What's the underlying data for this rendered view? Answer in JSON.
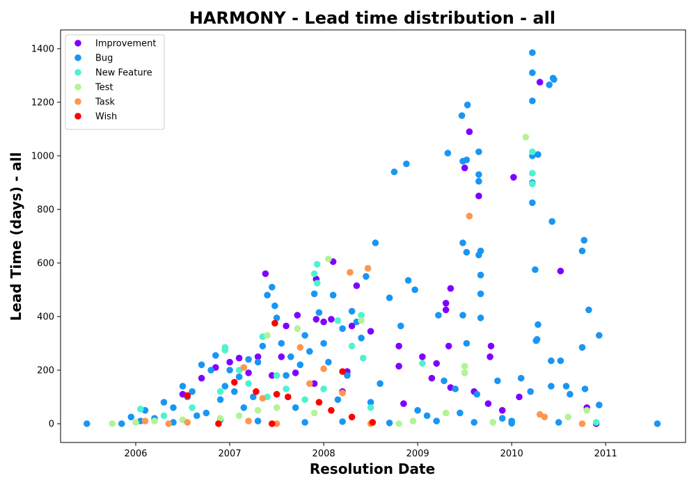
{
  "chart_data": {
    "type": "scatter",
    "title": "HARMONY - Lead time distribution - all",
    "xlabel": "Resolution Date",
    "ylabel": "Lead Time (days) - all",
    "xlim": [
      2005.2,
      2011.85
    ],
    "ylim": [
      -70,
      1470
    ],
    "xticks": [
      2006,
      2007,
      2008,
      2009,
      2010,
      2011
    ],
    "yticks": [
      0,
      200,
      400,
      600,
      800,
      1000,
      1200,
      1400
    ],
    "grid": false,
    "legend_position": "top-left",
    "series": [
      {
        "name": "Improvement",
        "color": "#8000ff",
        "points": [
          [
            2006.5,
            110
          ],
          [
            2006.7,
            170
          ],
          [
            2006.85,
            210
          ],
          [
            2007.0,
            230
          ],
          [
            2007.1,
            245
          ],
          [
            2007.2,
            190
          ],
          [
            2007.3,
            250
          ],
          [
            2007.38,
            560
          ],
          [
            2007.45,
            180
          ],
          [
            2007.55,
            250
          ],
          [
            2007.6,
            365
          ],
          [
            2007.7,
            190
          ],
          [
            2007.72,
            405
          ],
          [
            2007.9,
            150
          ],
          [
            2007.92,
            540
          ],
          [
            2007.92,
            390
          ],
          [
            2008.0,
            380
          ],
          [
            2008.08,
            390
          ],
          [
            2008.1,
            605
          ],
          [
            2008.2,
            120
          ],
          [
            2008.25,
            195
          ],
          [
            2008.3,
            365
          ],
          [
            2008.35,
            515
          ],
          [
            2008.5,
            345
          ],
          [
            2008.8,
            290
          ],
          [
            2008.8,
            215
          ],
          [
            2008.85,
            75
          ],
          [
            2009.05,
            250
          ],
          [
            2009.15,
            170
          ],
          [
            2009.2,
            225
          ],
          [
            2009.3,
            450
          ],
          [
            2009.3,
            425
          ],
          [
            2009.35,
            505
          ],
          [
            2009.35,
            135
          ],
          [
            2009.33,
            290
          ],
          [
            2009.5,
            955
          ],
          [
            2009.55,
            1090
          ],
          [
            2009.65,
            850
          ],
          [
            2009.6,
            120
          ],
          [
            2009.75,
            75
          ],
          [
            2009.78,
            290
          ],
          [
            2009.77,
            250
          ],
          [
            2009.9,
            50
          ],
          [
            2010.02,
            920
          ],
          [
            2010.3,
            1275
          ],
          [
            2010.52,
            570
          ],
          [
            2010.8,
            60
          ],
          [
            2010.9,
            0
          ],
          [
            2010.08,
            100
          ]
        ]
      },
      {
        "name": "Bug",
        "color": "#1996f3",
        "points": [
          [
            2005.48,
            0
          ],
          [
            2005.85,
            0
          ],
          [
            2005.95,
            25
          ],
          [
            2006.05,
            10
          ],
          [
            2006.1,
            50
          ],
          [
            2006.2,
            20
          ],
          [
            2006.3,
            80
          ],
          [
            2006.4,
            60
          ],
          [
            2006.5,
            140
          ],
          [
            2006.55,
            100
          ],
          [
            2006.6,
            120
          ],
          [
            2006.65,
            30
          ],
          [
            2006.7,
            220
          ],
          [
            2006.75,
            40
          ],
          [
            2006.8,
            200
          ],
          [
            2006.85,
            255
          ],
          [
            2006.9,
            90
          ],
          [
            2006.95,
            140
          ],
          [
            2007.0,
            200
          ],
          [
            2007.05,
            120
          ],
          [
            2007.1,
            175
          ],
          [
            2007.15,
            60
          ],
          [
            2007.2,
            240
          ],
          [
            2007.25,
            100
          ],
          [
            2007.3,
            230
          ],
          [
            2007.35,
            290
          ],
          [
            2007.4,
            480
          ],
          [
            2007.45,
            510
          ],
          [
            2007.48,
            440
          ],
          [
            2007.5,
            395
          ],
          [
            2007.55,
            300
          ],
          [
            2007.6,
            180
          ],
          [
            2007.65,
            250
          ],
          [
            2007.7,
            60
          ],
          [
            2007.75,
            220
          ],
          [
            2007.8,
            330
          ],
          [
            2007.85,
            270
          ],
          [
            2007.9,
            485
          ],
          [
            2007.95,
            415
          ],
          [
            2008.0,
            300
          ],
          [
            2008.05,
            230
          ],
          [
            2008.1,
            480
          ],
          [
            2008.15,
            90
          ],
          [
            2008.2,
            355
          ],
          [
            2008.25,
            180
          ],
          [
            2008.3,
            420
          ],
          [
            2008.35,
            380
          ],
          [
            2008.4,
            320
          ],
          [
            2008.45,
            550
          ],
          [
            2008.5,
            80
          ],
          [
            2008.55,
            675
          ],
          [
            2008.6,
            150
          ],
          [
            2008.7,
            470
          ],
          [
            2008.75,
            940
          ],
          [
            2008.82,
            365
          ],
          [
            2008.88,
            970
          ],
          [
            2008.9,
            535
          ],
          [
            2008.97,
            500
          ],
          [
            2009.0,
            50
          ],
          [
            2009.1,
            30
          ],
          [
            2009.22,
            405
          ],
          [
            2009.28,
            160
          ],
          [
            2009.32,
            1010
          ],
          [
            2009.4,
            130
          ],
          [
            2009.45,
            40
          ],
          [
            2009.47,
            1150
          ],
          [
            2009.48,
            980
          ],
          [
            2009.48,
            675
          ],
          [
            2009.48,
            405
          ],
          [
            2009.52,
            985
          ],
          [
            2009.53,
            1190
          ],
          [
            2009.52,
            640
          ],
          [
            2009.52,
            300
          ],
          [
            2009.63,
            110
          ],
          [
            2009.65,
            1015
          ],
          [
            2009.65,
            930
          ],
          [
            2009.65,
            905
          ],
          [
            2009.65,
            630
          ],
          [
            2009.67,
            645
          ],
          [
            2009.67,
            555
          ],
          [
            2009.67,
            485
          ],
          [
            2009.67,
            395
          ],
          [
            2009.85,
            160
          ],
          [
            2009.9,
            20
          ],
          [
            2010.0,
            10
          ],
          [
            2010.1,
            170
          ],
          [
            2010.2,
            120
          ],
          [
            2010.22,
            1385
          ],
          [
            2010.22,
            1310
          ],
          [
            2010.22,
            1205
          ],
          [
            2010.22,
            1000
          ],
          [
            2010.22,
            900
          ],
          [
            2010.22,
            825
          ],
          [
            2010.25,
            575
          ],
          [
            2010.28,
            1005
          ],
          [
            2010.27,
            315
          ],
          [
            2010.28,
            370
          ],
          [
            2010.26,
            310
          ],
          [
            2010.4,
            1265
          ],
          [
            2010.45,
            1285
          ],
          [
            2010.44,
            1290
          ],
          [
            2010.43,
            755
          ],
          [
            2010.42,
            235
          ],
          [
            2010.42,
            140
          ],
          [
            2010.52,
            235
          ],
          [
            2010.58,
            140
          ],
          [
            2010.62,
            110
          ],
          [
            2010.75,
            645
          ],
          [
            2010.77,
            685
          ],
          [
            2010.75,
            285
          ],
          [
            2010.78,
            130
          ],
          [
            2010.82,
            425
          ],
          [
            2010.93,
            330
          ],
          [
            2010.93,
            70
          ],
          [
            2011.55,
            0
          ],
          [
            2006.4,
            5
          ],
          [
            2006.9,
            15
          ],
          [
            2007.3,
            10
          ],
          [
            2007.8,
            5
          ],
          [
            2008.2,
            8
          ],
          [
            2008.7,
            3
          ],
          [
            2009.2,
            10
          ],
          [
            2009.6,
            5
          ],
          [
            2010.0,
            2
          ],
          [
            2010.5,
            5
          ]
        ]
      },
      {
        "name": "New Feature",
        "color": "#4df3ce",
        "points": [
          [
            2006.05,
            55
          ],
          [
            2006.3,
            30
          ],
          [
            2006.6,
            60
          ],
          [
            2006.9,
            120
          ],
          [
            2006.95,
            285
          ],
          [
            2006.95,
            275
          ],
          [
            2007.1,
            200
          ],
          [
            2007.2,
            150
          ],
          [
            2007.35,
            325
          ],
          [
            2007.4,
            100
          ],
          [
            2007.5,
            180
          ],
          [
            2007.6,
            130
          ],
          [
            2007.8,
            90
          ],
          [
            2007.93,
            595
          ],
          [
            2007.9,
            560
          ],
          [
            2007.93,
            525
          ],
          [
            2008.0,
            130
          ],
          [
            2008.15,
            385
          ],
          [
            2008.3,
            290
          ],
          [
            2008.4,
            405
          ],
          [
            2008.42,
            245
          ],
          [
            2008.5,
            60
          ],
          [
            2009.05,
            225
          ],
          [
            2009.5,
            190
          ],
          [
            2010.22,
            1015
          ],
          [
            2010.22,
            935
          ],
          [
            2010.22,
            895
          ],
          [
            2010.9,
            5
          ]
        ]
      },
      {
        "name": "Test",
        "color": "#b2f396",
        "points": [
          [
            2005.75,
            0
          ],
          [
            2006.0,
            5
          ],
          [
            2006.2,
            10
          ],
          [
            2006.5,
            15
          ],
          [
            2006.9,
            20
          ],
          [
            2007.1,
            30
          ],
          [
            2007.3,
            50
          ],
          [
            2007.4,
            330
          ],
          [
            2007.5,
            60
          ],
          [
            2007.72,
            355
          ],
          [
            2007.9,
            40
          ],
          [
            2008.05,
            615
          ],
          [
            2008.28,
            565
          ],
          [
            2008.4,
            385
          ],
          [
            2008.8,
            0
          ],
          [
            2008.95,
            10
          ],
          [
            2009.3,
            40
          ],
          [
            2009.5,
            215
          ],
          [
            2009.5,
            190
          ],
          [
            2009.8,
            5
          ],
          [
            2010.15,
            1070
          ],
          [
            2010.6,
            25
          ],
          [
            2010.8,
            50
          ]
        ]
      },
      {
        "name": "Task",
        "color": "#ff964f",
        "points": [
          [
            2006.1,
            10
          ],
          [
            2006.35,
            0
          ],
          [
            2006.55,
            5
          ],
          [
            2007.15,
            210
          ],
          [
            2007.2,
            10
          ],
          [
            2007.35,
            95
          ],
          [
            2007.5,
            0
          ],
          [
            2007.75,
            285
          ],
          [
            2007.85,
            150
          ],
          [
            2008.0,
            205
          ],
          [
            2008.2,
            115
          ],
          [
            2008.28,
            565
          ],
          [
            2008.47,
            580
          ],
          [
            2008.5,
            0
          ],
          [
            2009.55,
            775
          ],
          [
            2010.3,
            35
          ],
          [
            2010.35,
            25
          ],
          [
            2010.75,
            0
          ]
        ]
      },
      {
        "name": "Wish",
        "color": "#ff0000",
        "points": [
          [
            2006.55,
            105
          ],
          [
            2006.88,
            0
          ],
          [
            2007.05,
            155
          ],
          [
            2007.28,
            120
          ],
          [
            2007.45,
            0
          ],
          [
            2007.48,
            375
          ],
          [
            2007.5,
            110
          ],
          [
            2007.62,
            100
          ],
          [
            2007.95,
            80
          ],
          [
            2008.08,
            50
          ],
          [
            2008.2,
            195
          ],
          [
            2008.3,
            25
          ],
          [
            2008.52,
            5
          ]
        ]
      }
    ]
  }
}
